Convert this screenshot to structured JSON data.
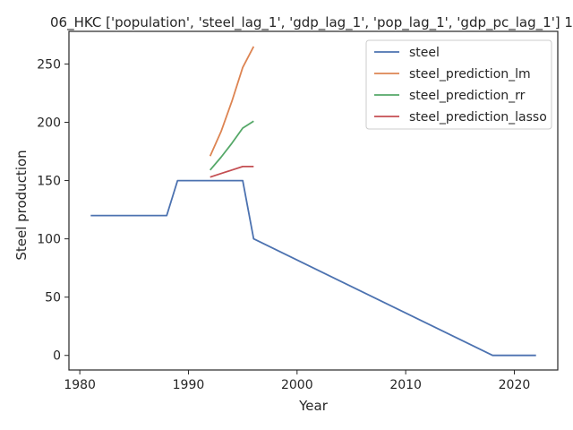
{
  "chart_data": {
    "type": "line",
    "title": "06_HKC ['population', 'steel_lag_1', 'gdp_lag_1', 'pop_lag_1', 'gdp_pc_lag_1'] 1",
    "xlabel": "Year",
    "ylabel": "Steel production",
    "xlim": [
      1979,
      2024
    ],
    "ylim": [
      -12.5,
      278
    ],
    "xticks": [
      1980,
      1990,
      2000,
      2010,
      2020
    ],
    "yticks": [
      0,
      50,
      100,
      150,
      200,
      250
    ],
    "grid": false,
    "legend_position": "top-right",
    "series": [
      {
        "name": "steel",
        "color": "#4c72b0",
        "points": [
          [
            1981,
            120
          ],
          [
            1988,
            120
          ],
          [
            1989,
            150
          ],
          [
            1995,
            150
          ],
          [
            1996,
            100
          ],
          [
            2018,
            0
          ],
          [
            2022,
            0
          ]
        ]
      },
      {
        "name": "steel_prediction_lm",
        "color": "#dd8452",
        "points": [
          [
            1992,
            171
          ],
          [
            1993,
            192
          ],
          [
            1994,
            218
          ],
          [
            1995,
            247
          ],
          [
            1996,
            265
          ]
        ]
      },
      {
        "name": "steel_prediction_rr",
        "color": "#55a868",
        "points": [
          [
            1992,
            159
          ],
          [
            1993,
            170
          ],
          [
            1994,
            182
          ],
          [
            1995,
            195
          ],
          [
            1996,
            201
          ]
        ]
      },
      {
        "name": "steel_prediction_lasso",
        "color": "#c44e52",
        "points": [
          [
            1992,
            153
          ],
          [
            1993,
            156
          ],
          [
            1994,
            159
          ],
          [
            1995,
            162
          ],
          [
            1996,
            162
          ]
        ]
      }
    ]
  }
}
